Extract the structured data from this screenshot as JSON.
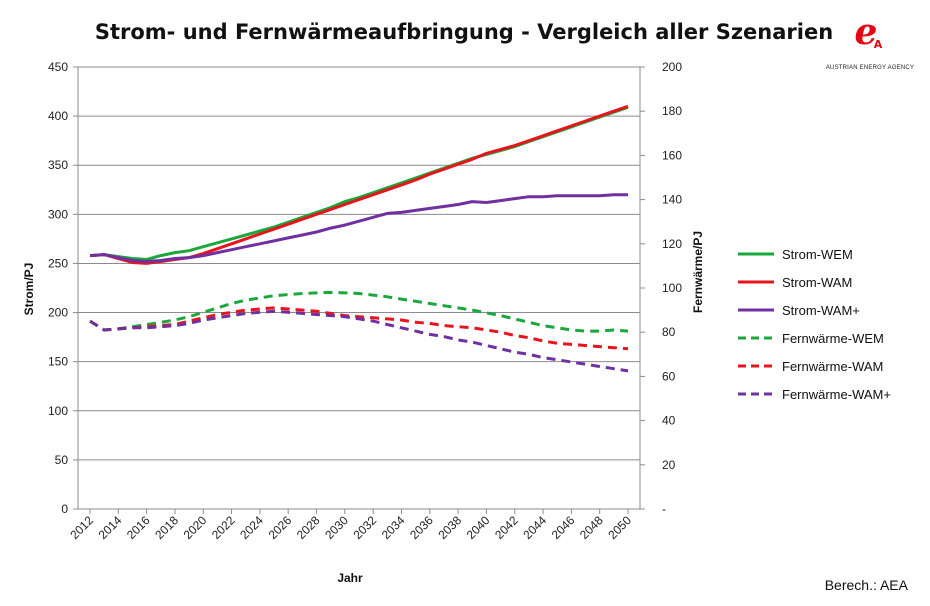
{
  "chart_data": {
    "type": "line",
    "title": "Strom- und Fernwärmeaufbringung - Vergleich aller Szenarien",
    "xlabel": "Jahr",
    "ylabel_left": "Strom/PJ",
    "ylabel_right": "Fernwärme/PJ",
    "source": "Berech.: AEA",
    "logo_text": "AUSTRIAN ENERGY AGENCY",
    "ylim_left": [
      0,
      450
    ],
    "yticks_left": [
      0,
      50,
      100,
      150,
      200,
      250,
      300,
      350,
      400,
      450
    ],
    "ylim_right": [
      0,
      200
    ],
    "yticks_right": [
      "-",
      "20",
      "40",
      "60",
      "80",
      "100",
      "120",
      "140",
      "160",
      "180",
      "200"
    ],
    "x_tick_labels": [
      "2012",
      "2014",
      "2016",
      "2018",
      "2020",
      "2022",
      "2024",
      "2026",
      "2028",
      "2030",
      "2032",
      "2034",
      "2036",
      "2038",
      "2040",
      "2042",
      "2044",
      "2046",
      "2048",
      "2050"
    ],
    "x": [
      2012,
      2013,
      2014,
      2015,
      2016,
      2017,
      2018,
      2019,
      2020,
      2021,
      2022,
      2023,
      2024,
      2025,
      2026,
      2027,
      2028,
      2029,
      2030,
      2031,
      2032,
      2033,
      2034,
      2035,
      2036,
      2037,
      2038,
      2039,
      2040,
      2041,
      2042,
      2043,
      2044,
      2045,
      2046,
      2047,
      2048,
      2049,
      2050
    ],
    "grid": "horizontal",
    "legend_position": "right",
    "series": [
      {
        "name": "Strom-WEM",
        "axis": "left",
        "color": "#1aa83c",
        "dash": "solid",
        "values": [
          258,
          259,
          257,
          255,
          254,
          258,
          261,
          263,
          267,
          271,
          275,
          279,
          283,
          287,
          292,
          297,
          302,
          307,
          313,
          317,
          322,
          327,
          332,
          337,
          342,
          347,
          352,
          357,
          361,
          365,
          369,
          374,
          379,
          384,
          389,
          394,
          399,
          404,
          409
        ]
      },
      {
        "name": "Strom-WAM",
        "axis": "left",
        "color": "#e8141c",
        "dash": "solid",
        "values": [
          258,
          259,
          255,
          251,
          250,
          252,
          254,
          256,
          260,
          265,
          270,
          275,
          280,
          285,
          290,
          295,
          300,
          305,
          310,
          315,
          320,
          325,
          330,
          335,
          341,
          346,
          351,
          356,
          362,
          366,
          370,
          375,
          380,
          385,
          390,
          395,
          400,
          405,
          410
        ]
      },
      {
        "name": "Strom-WAM+",
        "axis": "left",
        "color": "#7030a0",
        "dash": "solid",
        "values": [
          258,
          259,
          256,
          253,
          252,
          253,
          255,
          256,
          258,
          261,
          264,
          267,
          270,
          273,
          276,
          279,
          282,
          286,
          289,
          293,
          297,
          301,
          302,
          304,
          306,
          308,
          310,
          313,
          312,
          314,
          316,
          318,
          318,
          319,
          319,
          319,
          319,
          320,
          320
        ]
      },
      {
        "name": "Fernwärme-WEM",
        "axis": "right",
        "color": "#1aa83c",
        "dash": "dashed",
        "values": [
          85,
          81,
          81.5,
          82.5,
          83.5,
          84.5,
          85.5,
          87,
          89,
          91,
          93,
          94.5,
          95.5,
          96.5,
          97,
          97.5,
          97.8,
          98,
          97.8,
          97.5,
          96.8,
          96,
          95,
          94,
          93,
          92,
          91,
          90,
          88.8,
          87.5,
          86,
          84.5,
          83,
          82,
          81,
          80.5,
          80.5,
          81,
          80.5
        ]
      },
      {
        "name": "Fernwärme-WAM",
        "axis": "right",
        "color": "#e8141c",
        "dash": "dashed",
        "values": [
          85,
          81,
          81.5,
          82,
          82.5,
          83,
          83.5,
          85,
          86.5,
          88,
          89,
          90,
          90.5,
          91,
          90.5,
          90,
          89.5,
          88.5,
          87.5,
          87,
          86.5,
          86,
          85.5,
          84.5,
          84,
          83,
          82.5,
          82,
          81,
          80,
          78.5,
          77.5,
          76,
          75,
          74.5,
          74,
          73.5,
          73,
          72.5
        ]
      },
      {
        "name": "Fernwärme-WAM+",
        "axis": "right",
        "color": "#7030a0",
        "dash": "dashed",
        "values": [
          85,
          81,
          81.5,
          82,
          82,
          82.5,
          83,
          84,
          85.5,
          86.5,
          87.5,
          88.5,
          89,
          89.5,
          89,
          88.5,
          88,
          87.5,
          87,
          86,
          85,
          83.5,
          82,
          80.5,
          79,
          78,
          76.5,
          75.5,
          74,
          72.5,
          71,
          70,
          68.5,
          67.5,
          66.5,
          65.5,
          64.5,
          63.5,
          62.5
        ]
      }
    ]
  }
}
